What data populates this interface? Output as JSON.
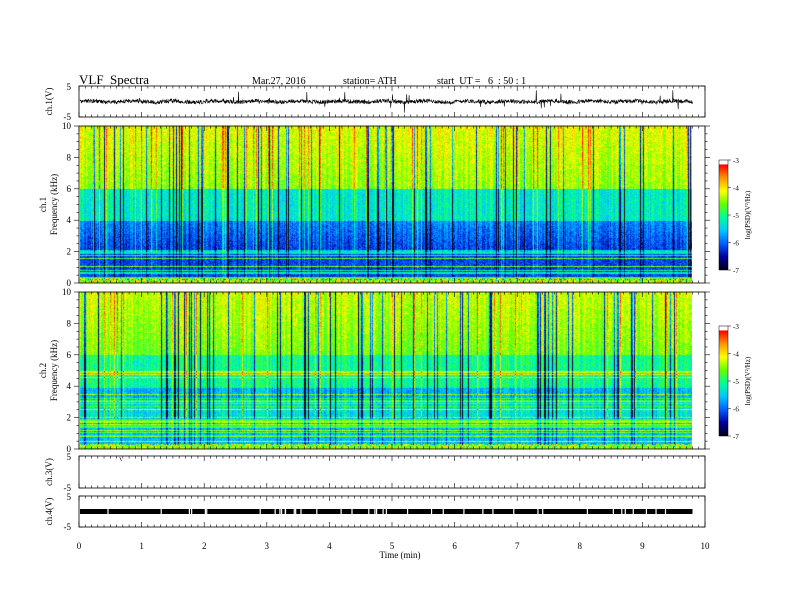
{
  "header": {
    "title": "VLF  Spectra",
    "date": "Mar.27, 2016",
    "station": "station= ATH",
    "start": "start  UT =   6  : 50 : 1"
  },
  "chart_data": [
    {
      "type": "line",
      "panel": "ch1-waveform",
      "ylabel": "ch.1(V)",
      "yticks": [
        "5",
        "-5"
      ],
      "ylim": [
        -5,
        5
      ],
      "xlim": [
        0,
        10
      ],
      "data_extent_min": 9.8,
      "baseline_value": 0,
      "description_color": "#000000"
    },
    {
      "type": "heatmap",
      "panel": "ch1-spectrogram",
      "ylabel": "ch.1\nFrequency  (kHz)",
      "ylabel_lines": [
        "ch.1",
        "Frequency  (kHz)"
      ],
      "yticks": [
        "0",
        "2",
        "4",
        "6",
        "8",
        "10"
      ],
      "ylim": [
        0,
        10
      ],
      "xlim": [
        0,
        10
      ],
      "data_extent_min": 9.8,
      "colorbar": {
        "label": "log(PSD)(V²/Hz)",
        "ticks": [
          "-3",
          "-4",
          "-5",
          "-6",
          "-7"
        ],
        "range": [
          -7,
          -3
        ]
      }
    },
    {
      "type": "heatmap",
      "panel": "ch2-spectrogram",
      "ylabel": "ch.2\nFrequency  (kHz)",
      "ylabel_lines": [
        "ch.2",
        "Frequency  (kHz)"
      ],
      "yticks": [
        "0",
        "2",
        "4",
        "6",
        "8",
        "10"
      ],
      "ylim": [
        0,
        10
      ],
      "xlim": [
        0,
        10
      ],
      "data_extent_min": 9.8,
      "colorbar": {
        "label": "log(PSD)(V²/Hz)",
        "ticks": [
          "-3",
          "-4",
          "-5",
          "-6",
          "-7"
        ],
        "range": [
          -7,
          -3
        ]
      }
    },
    {
      "type": "line",
      "panel": "ch3-waveform",
      "ylabel": "ch.3(V)",
      "yticks": [
        "5",
        "-5"
      ],
      "ylim": [
        -5,
        5
      ],
      "xlim": [
        0,
        10
      ]
    },
    {
      "type": "line",
      "panel": "ch4-waveform",
      "ylabel": "ch.4(V)",
      "yticks": [
        "5",
        "-5"
      ],
      "ylim": [
        -5,
        5
      ],
      "xlim": [
        0,
        10
      ],
      "baseline_value": 0,
      "data_extent_min": 9.8
    }
  ],
  "xaxis": {
    "label": "Time  (min)",
    "ticks": [
      "0",
      "1",
      "2",
      "3",
      "4",
      "5",
      "6",
      "7",
      "8",
      "9",
      "10"
    ]
  },
  "colors": {
    "colormap": [
      "#00001a",
      "#0000a0",
      "#0060ff",
      "#00c8ff",
      "#00ff96",
      "#64ff00",
      "#ffff00",
      "#ff9600",
      "#ff0000",
      "#ffffff"
    ]
  }
}
